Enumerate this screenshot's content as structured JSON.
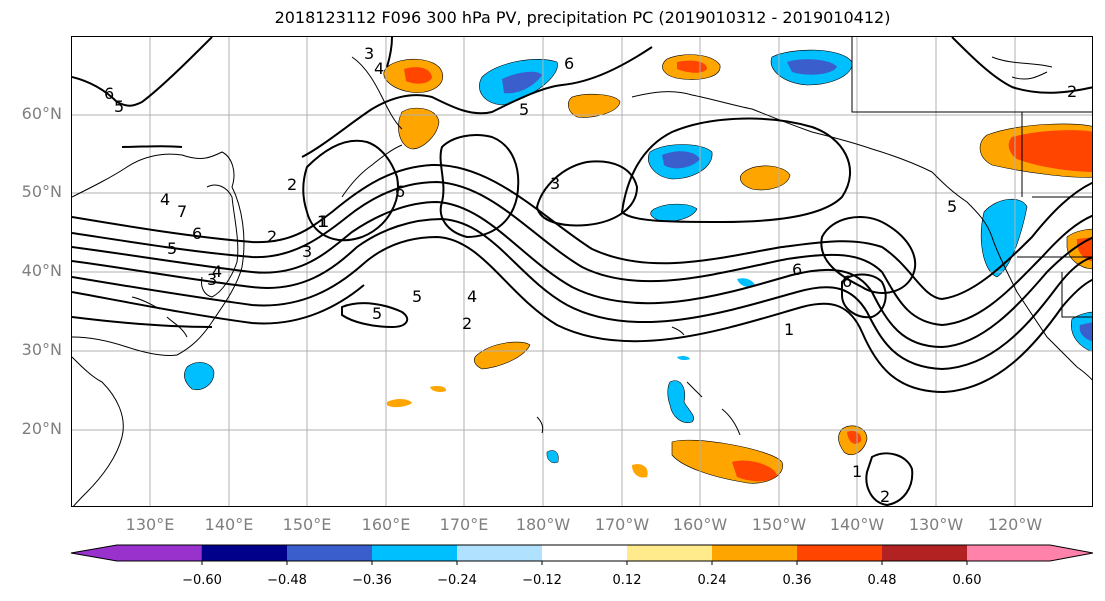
{
  "title": "2018123112 F096 300 hPa PV, precipitation PC (2019010312 - 2019010412)",
  "lat_labels": [
    "60°N",
    "50°N",
    "40°N",
    "30°N",
    "20°N"
  ],
  "lon_labels": [
    "130°E",
    "140°E",
    "150°E",
    "160°E",
    "170°E",
    "180°W",
    "170°W",
    "160°W",
    "150°W",
    "140°W",
    "130°W",
    "120°W"
  ],
  "contour_labels": [
    "3",
    "4",
    "6",
    "5",
    "6",
    "2",
    "6",
    "5",
    "4",
    "7",
    "6",
    "5",
    "3",
    "3",
    "2",
    "1",
    "3",
    "6",
    "5",
    "4",
    "2",
    "5",
    "2",
    "1",
    "6",
    "1",
    "2",
    "4",
    "1",
    "5"
  ],
  "colorbar": {
    "colors": [
      "#9932cc",
      "#00008b",
      "#3a5fcd",
      "#00bfff",
      "#b0e2ff",
      "#ffffff",
      "#ffeb8c",
      "#ffa500",
      "#ff4500",
      "#b22222",
      "#ff82ab"
    ],
    "tick_labels": [
      "−0.60",
      "−0.48",
      "−0.36",
      "−0.24",
      "−0.12",
      "0.12",
      "0.24",
      "0.36",
      "0.48",
      "0.60"
    ]
  }
}
